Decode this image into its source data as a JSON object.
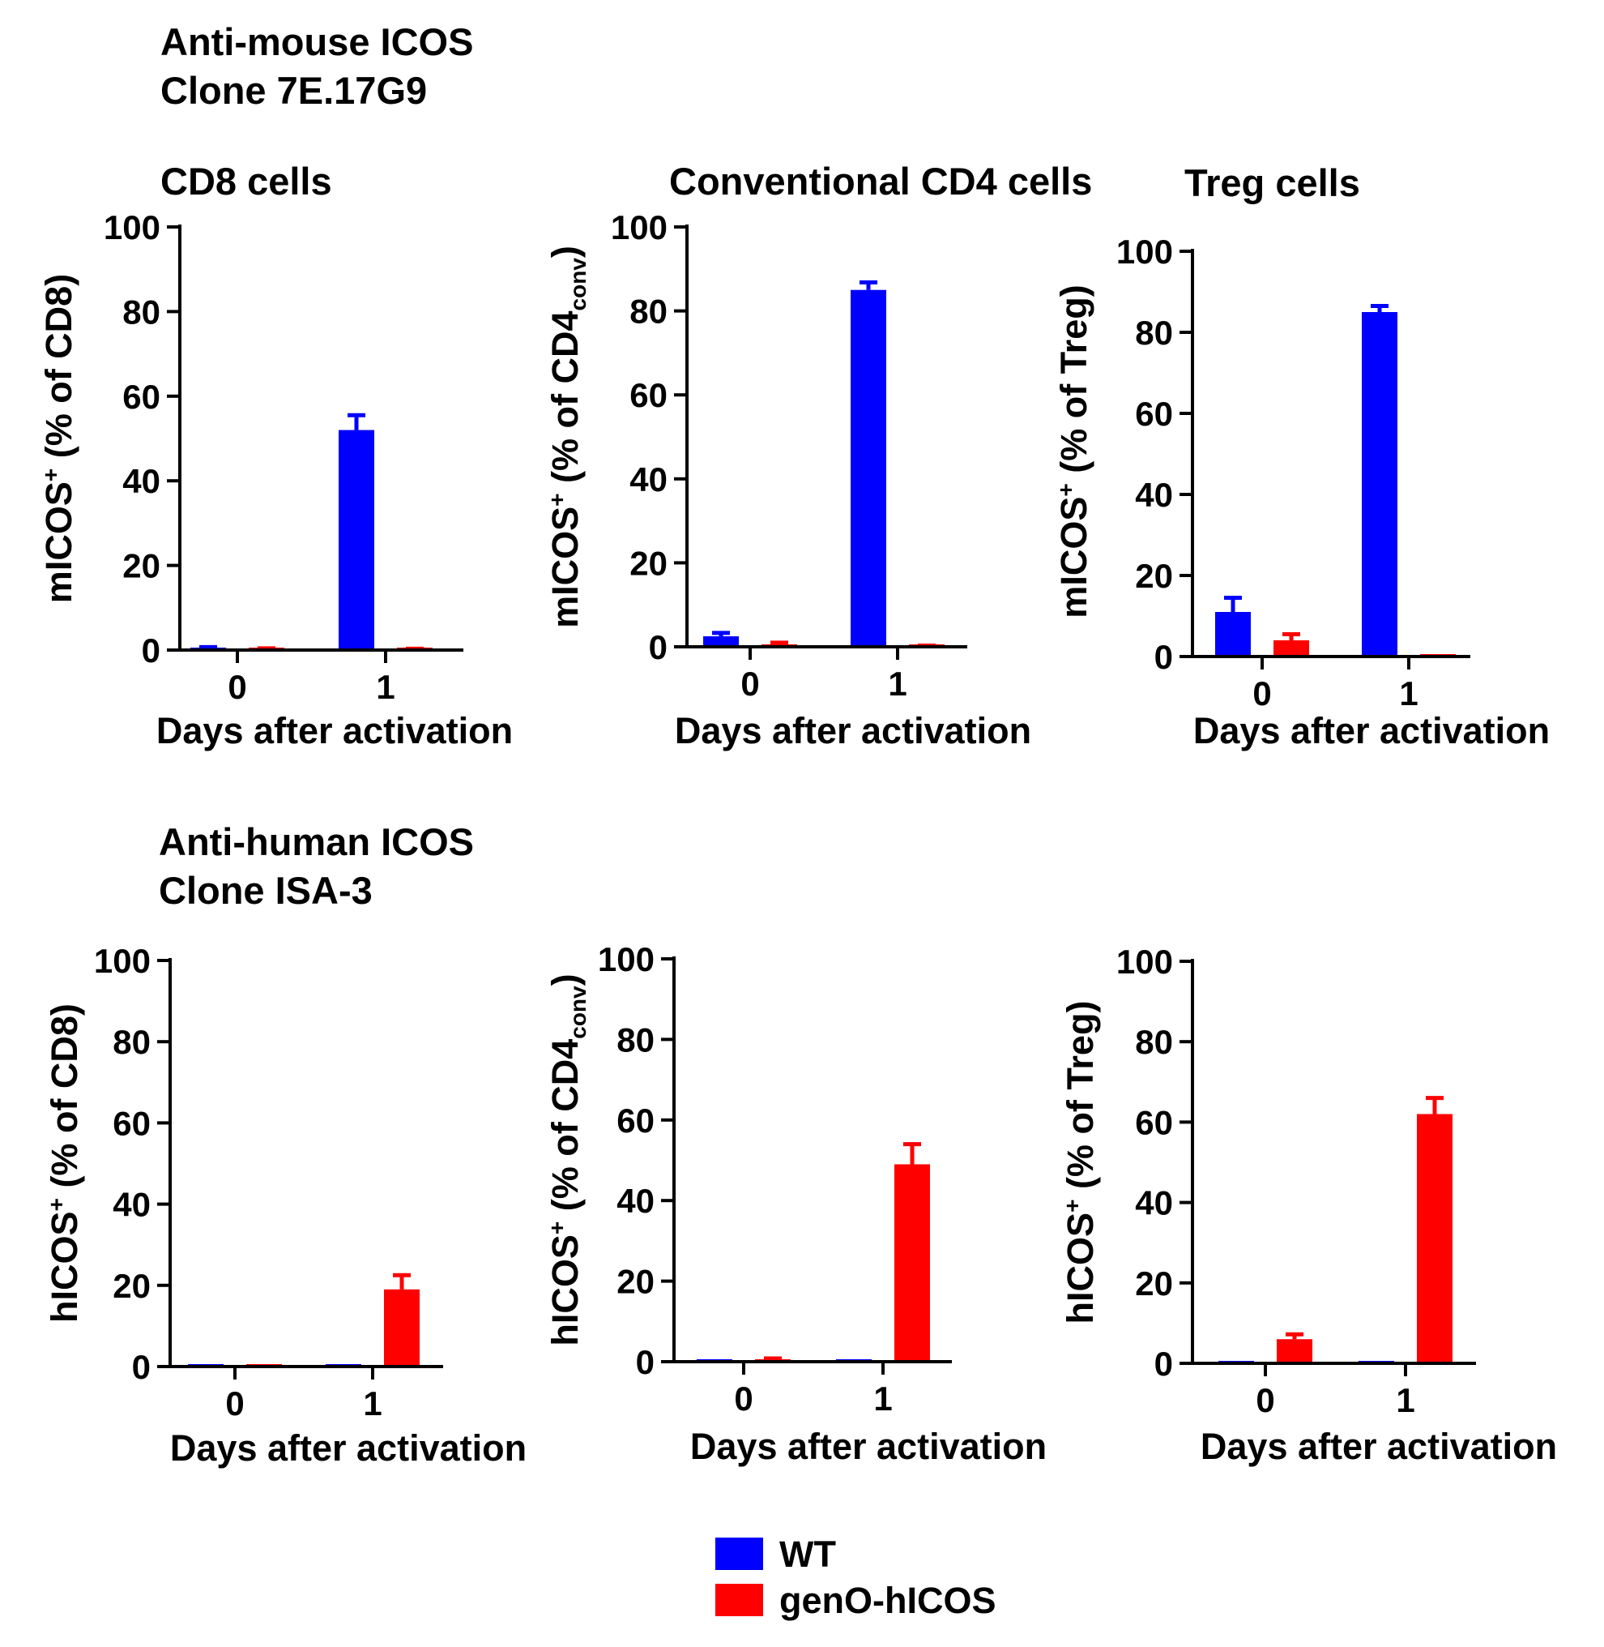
{
  "figure": {
    "top_section": {
      "line1": "Anti-mouse ICOS",
      "line2": "Clone 7E.17G9"
    },
    "bottom_section": {
      "line1": "Anti-human ICOS",
      "line2": "Clone ISA-3"
    },
    "legend": [
      {
        "label": "WT",
        "color": "#0000ff"
      },
      {
        "label": "genO-hICOS",
        "color": "#ff0000"
      }
    ]
  },
  "chart_data": [
    {
      "type": "bar",
      "title": "CD8 cells",
      "xlabel": "Days after activation",
      "ylabel": {
        "marker": "m",
        "mid": "ICOS",
        "sup": "+",
        "text": " (% of CD8)",
        "sub": "",
        "tail": ""
      },
      "categories": [
        "0",
        "1"
      ],
      "ylim": [
        0,
        100
      ],
      "yticks": [
        0,
        20,
        40,
        60,
        80,
        100
      ],
      "series": [
        {
          "name": "WT",
          "color": "#0000ff",
          "values": [
            0.5,
            52
          ],
          "errors": [
            0.2,
            3.5
          ]
        },
        {
          "name": "genO-hICOS",
          "color": "#ff0000",
          "values": [
            0.3,
            0.2
          ],
          "errors": [
            0.1,
            0.1
          ]
        }
      ]
    },
    {
      "type": "bar",
      "title": "Conventional CD4 cells",
      "xlabel": "Days after activation",
      "ylabel": {
        "marker": "m",
        "mid": "ICOS",
        "sup": "+",
        "text": " (% of CD4",
        "sub": "conv",
        "tail": ")"
      },
      "categories": [
        "0",
        "1"
      ],
      "ylim": [
        0,
        100
      ],
      "yticks": [
        0,
        20,
        40,
        60,
        80,
        100
      ],
      "series": [
        {
          "name": "WT",
          "color": "#0000ff",
          "values": [
            2.5,
            85
          ],
          "errors": [
            0.8,
            1.8
          ]
        },
        {
          "name": "genO-hICOS",
          "color": "#ff0000",
          "values": [
            0.5,
            0.2
          ],
          "errors": [
            0.5,
            0.1
          ]
        }
      ]
    },
    {
      "type": "bar",
      "title": "Treg cells",
      "xlabel": "Days after activation",
      "ylabel": {
        "marker": "m",
        "mid": "ICOS",
        "sup": "+",
        "text": " (% of Treg)",
        "sub": "",
        "tail": ""
      },
      "categories": [
        "0",
        "1"
      ],
      "ylim": [
        0,
        100
      ],
      "yticks": [
        0,
        20,
        40,
        60,
        80,
        100
      ],
      "series": [
        {
          "name": "WT",
          "color": "#0000ff",
          "values": [
            11,
            85
          ],
          "errors": [
            3.5,
            1.5
          ]
        },
        {
          "name": "genO-hICOS",
          "color": "#ff0000",
          "values": [
            4,
            0
          ],
          "errors": [
            1.5,
            0
          ]
        }
      ]
    },
    {
      "type": "bar",
      "title": "",
      "xlabel": "Days after activation",
      "ylabel": {
        "marker": "h",
        "mid": "ICOS",
        "sup": "+",
        "text": " (% of CD8)",
        "sub": "",
        "tail": ""
      },
      "categories": [
        "0",
        "1"
      ],
      "ylim": [
        0,
        100
      ],
      "yticks": [
        0,
        20,
        40,
        60,
        80,
        100
      ],
      "series": [
        {
          "name": "WT",
          "color": "#0000ff",
          "values": [
            0,
            0.3
          ],
          "errors": [
            0,
            0
          ]
        },
        {
          "name": "genO-hICOS",
          "color": "#ff0000",
          "values": [
            0,
            19
          ],
          "errors": [
            0,
            3.5
          ]
        }
      ]
    },
    {
      "type": "bar",
      "title": "",
      "xlabel": "Days after activation",
      "ylabel": {
        "marker": "h",
        "mid": "ICOS",
        "sup": "+",
        "text": " (% of CD4",
        "sub": "conv",
        "tail": ")"
      },
      "categories": [
        "0",
        "1"
      ],
      "ylim": [
        0,
        100
      ],
      "yticks": [
        0,
        20,
        40,
        60,
        80,
        100
      ],
      "series": [
        {
          "name": "WT",
          "color": "#0000ff",
          "values": [
            0,
            0
          ],
          "errors": [
            0,
            0
          ]
        },
        {
          "name": "genO-hICOS",
          "color": "#ff0000",
          "values": [
            0.5,
            49
          ],
          "errors": [
            0.3,
            5
          ]
        }
      ]
    },
    {
      "type": "bar",
      "title": "",
      "xlabel": "Days after activation",
      "ylabel": {
        "marker": "h",
        "mid": "ICOS",
        "sup": "+",
        "text": " (% of Treg)",
        "sub": "",
        "tail": ""
      },
      "categories": [
        "0",
        "1"
      ],
      "ylim": [
        0,
        100
      ],
      "yticks": [
        0,
        20,
        40,
        60,
        80,
        100
      ],
      "series": [
        {
          "name": "WT",
          "color": "#0000ff",
          "values": [
            0,
            0.3
          ],
          "errors": [
            0,
            0
          ]
        },
        {
          "name": "genO-hICOS",
          "color": "#ff0000",
          "values": [
            6,
            62
          ],
          "errors": [
            1.2,
            4
          ]
        }
      ]
    }
  ]
}
